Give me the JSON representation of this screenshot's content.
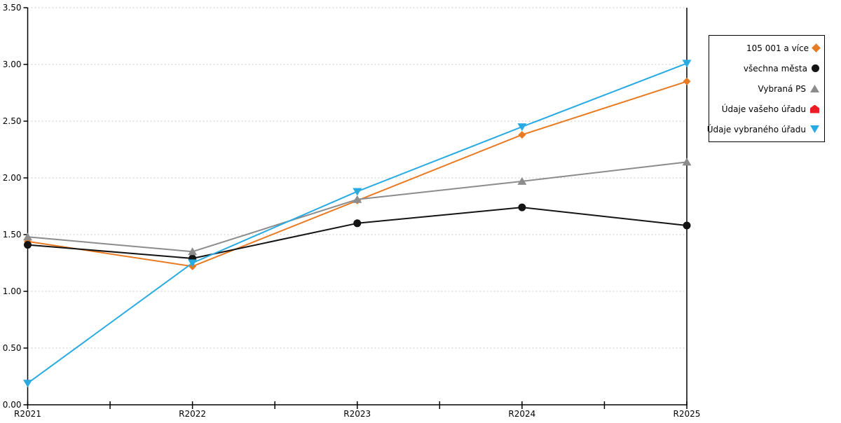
{
  "chart_data": {
    "type": "line",
    "title": "",
    "xlabel": "",
    "ylabel": "",
    "categories": [
      "R2021",
      "R2022",
      "R2023",
      "R2024",
      "R2025"
    ],
    "ylim": [
      0,
      3.5
    ],
    "ytick_step": 0.5,
    "y_tick_labels": [
      "0.00",
      "0.50",
      "1.00",
      "1.50",
      "2.00",
      "2.50",
      "3.00",
      "3.50"
    ],
    "grid": "horizontal-dotted",
    "grid_color": "#c8c8c8",
    "axis_color": "#000000",
    "legend_position": "outside-top-right",
    "series": [
      {
        "name": "105 001 a více",
        "color": "#e87a22",
        "marker": "diamond",
        "values": [
          1.44,
          1.22,
          1.8,
          2.38,
          2.85
        ]
      },
      {
        "name": "všechna města",
        "color": "#141414",
        "marker": "circle",
        "values": [
          1.41,
          1.29,
          1.6,
          1.74,
          1.58
        ]
      },
      {
        "name": "Vybraná PS",
        "color": "#8c8c8c",
        "marker": "tri-up",
        "values": [
          1.48,
          1.35,
          1.81,
          1.97,
          2.14
        ]
      },
      {
        "name": "Údaje vašeho úřadu",
        "color": "#ec1c24",
        "marker": "pentagon",
        "values": null
      },
      {
        "name": "Údaje vybraného úřadu",
        "color": "#29abe2",
        "marker": "tri-down",
        "values": [
          0.19,
          1.25,
          1.88,
          2.45,
          3.01
        ]
      }
    ]
  }
}
